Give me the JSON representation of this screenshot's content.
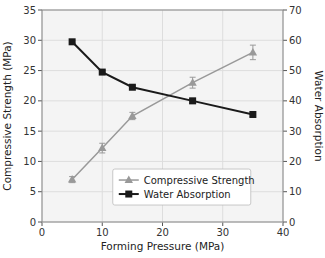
{
  "chart_data": {
    "type": "line",
    "x": [
      5,
      10,
      15,
      25,
      35
    ],
    "x_label": "Forming Pressure (MPa)",
    "y_label": "Compressive Strength (MPa)",
    "y2_label": "Water Absorption",
    "xlim": [
      0,
      40
    ],
    "xticks": [
      0,
      10,
      20,
      30,
      40
    ],
    "ylim": [
      0,
      35
    ],
    "yticks": [
      0,
      5,
      10,
      15,
      20,
      25,
      30,
      35
    ],
    "y2lim": [
      0,
      70
    ],
    "y2ticks": [
      0,
      10,
      20,
      30,
      40,
      50,
      60,
      70
    ],
    "grid": true,
    "legend": "bottom",
    "series": [
      {
        "name": "Compressive Strength",
        "color": "#999999",
        "marker": "triangle",
        "values": [
          7.0,
          12.2,
          17.5,
          23.0,
          28.0
        ],
        "errors": [
          0.5,
          0.8,
          0.6,
          0.9,
          1.2
        ]
      },
      {
        "name": "Water Absorption",
        "color": "#1a1a1a",
        "marker": "square",
        "axis": "y2",
        "values": [
          59.5,
          49.5,
          44.5,
          40.0,
          35.5
        ],
        "errors": [
          0.4,
          0.5,
          0.5,
          0.8,
          0.6
        ]
      }
    ]
  }
}
